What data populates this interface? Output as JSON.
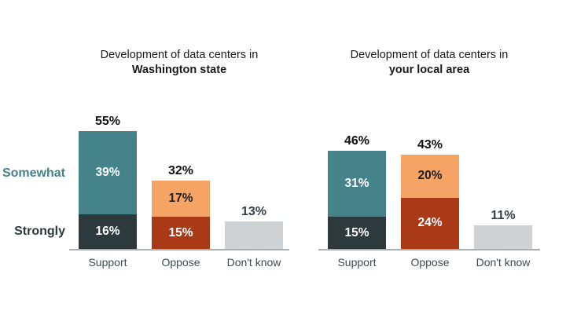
{
  "colors": {
    "teal": "#45828A",
    "dark_slate": "#2C3A3D",
    "orange": "#F5A466",
    "rust": "#A93917",
    "gray_bar": "#CED2D5",
    "axis_line": "#A9AEB2",
    "category_label_text": "#3D4B52",
    "muted_total_text": "#333F47",
    "title_text": "#1A1A1A",
    "segment_light_text": "#FFFFFF",
    "segment_dark_text": "#201F1E"
  },
  "side_labels": {
    "somewhat": "Somewhat",
    "strongly": "Strongly"
  },
  "charts": [
    {
      "title_line1": "Development of data centers in",
      "title_line2": "Washington state",
      "columns": [
        {
          "category": "Support",
          "total": "55%",
          "segments": [
            {
              "name": "somewhat",
              "label": "39%",
              "value": 39
            },
            {
              "name": "strongly",
              "label": "16%",
              "value": 16
            }
          ]
        },
        {
          "category": "Oppose",
          "total": "32%",
          "segments": [
            {
              "name": "somewhat",
              "label": "17%",
              "value": 17
            },
            {
              "name": "strongly",
              "label": "15%",
              "value": 15
            }
          ]
        },
        {
          "category": "Don't know",
          "total": "13%",
          "segments": [
            {
              "name": "dont-know",
              "label": "",
              "value": 13
            }
          ]
        }
      ]
    },
    {
      "title_line1": "Development of data centers in",
      "title_line2": "your local area",
      "columns": [
        {
          "category": "Support",
          "total": "46%",
          "segments": [
            {
              "name": "somewhat",
              "label": "31%",
              "value": 31
            },
            {
              "name": "strongly",
              "label": "15%",
              "value": 15
            }
          ]
        },
        {
          "category": "Oppose",
          "total": "43%",
          "segments": [
            {
              "name": "somewhat",
              "label": "20%",
              "value": 20
            },
            {
              "name": "strongly",
              "label": "24%",
              "value": 24
            }
          ]
        },
        {
          "category": "Don't know",
          "total": "11%",
          "segments": [
            {
              "name": "dont-know",
              "label": "",
              "value": 11
            }
          ]
        }
      ]
    }
  ],
  "chart_data": [
    {
      "type": "bar",
      "stacked": true,
      "title": "Development of data centers in Washington state",
      "categories": [
        "Support",
        "Oppose",
        "Don't know"
      ],
      "series": [
        {
          "name": "Strongly",
          "values": [
            16,
            15,
            0
          ]
        },
        {
          "name": "Somewhat",
          "values": [
            39,
            17,
            0
          ]
        },
        {
          "name": "Don't know",
          "values": [
            0,
            0,
            13
          ]
        }
      ],
      "totals": [
        55,
        32,
        13
      ],
      "unit": "%",
      "ylim": [
        0,
        60
      ],
      "grid": false,
      "value_labels": "inside-and-total-above",
      "legend_position": "row-labels-left-of-first-chart"
    },
    {
      "type": "bar",
      "stacked": true,
      "title": "Development of data centers in your local area",
      "categories": [
        "Support",
        "Oppose",
        "Don't know"
      ],
      "series": [
        {
          "name": "Strongly",
          "values": [
            15,
            24,
            0
          ]
        },
        {
          "name": "Somewhat",
          "values": [
            31,
            20,
            0
          ]
        },
        {
          "name": "Don't know",
          "values": [
            0,
            0,
            11
          ]
        }
      ],
      "totals": [
        46,
        43,
        11
      ],
      "unit": "%",
      "ylim": [
        0,
        60
      ],
      "grid": false,
      "value_labels": "inside-and-total-above",
      "legend_position": "row-labels-left-of-first-chart"
    }
  ]
}
